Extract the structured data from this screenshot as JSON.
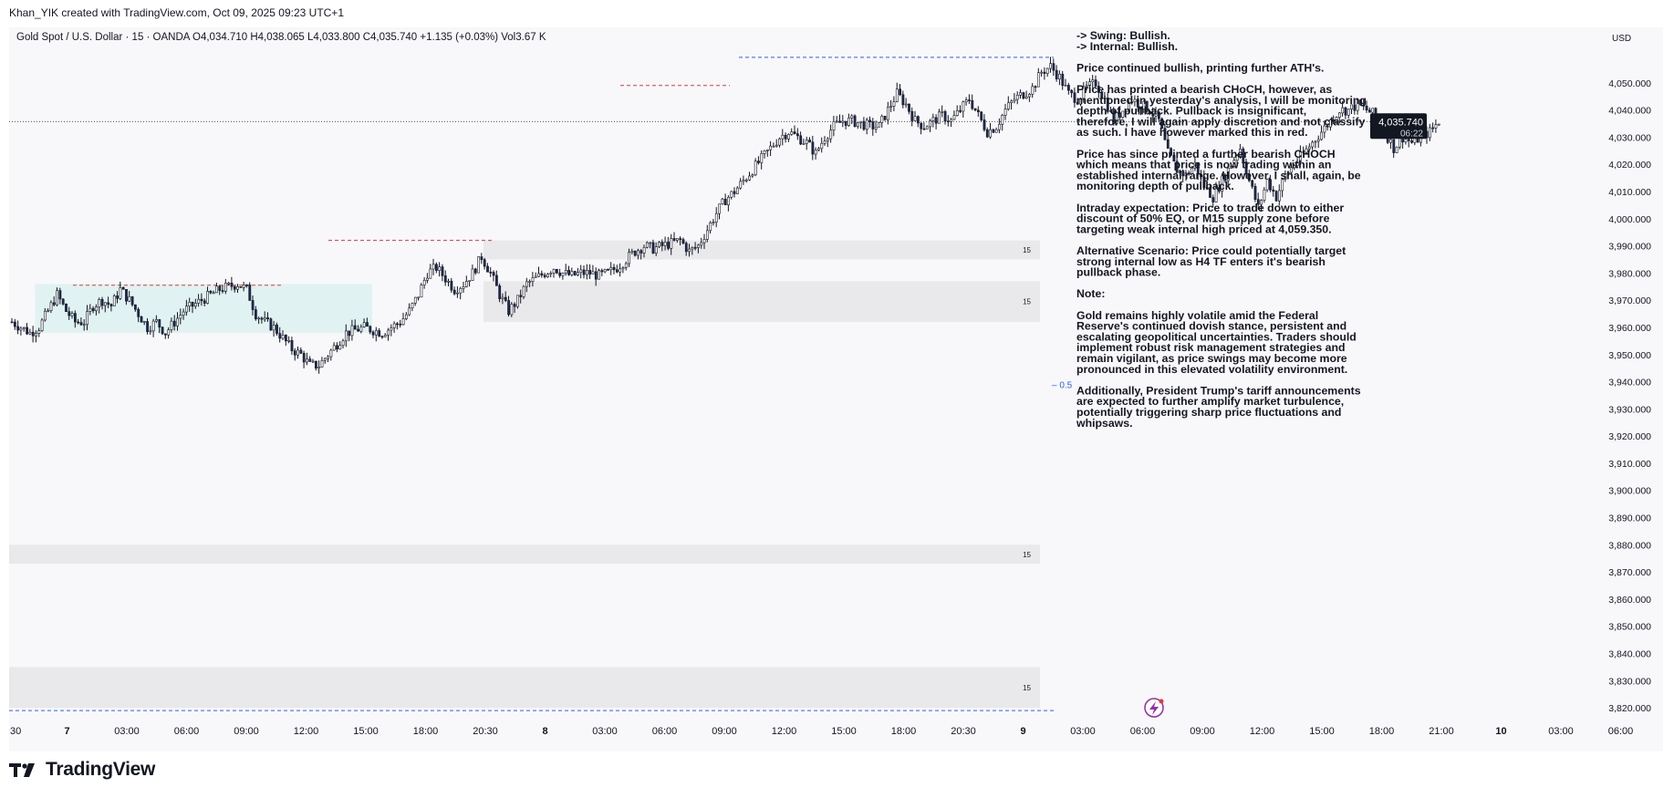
{
  "header": {
    "caption": "Khan_YIK created with TradingView.com, Oct 09, 2025 09:23 UTC+1"
  },
  "footer": {
    "brand": "TradingView"
  },
  "chart_data": {
    "type": "candlestick",
    "symbol_line": "Gold Spot / U.S. Dollar · 15 · OANDA  O4,034.710  H4,038.065  L4,033.800  C4,035.740  +1.135 (+0.03%)  Vol3.67 K",
    "currency": "USD",
    "ylim": [
      3815,
      4060
    ],
    "y_ticks": [
      4050,
      4040,
      4030,
      4020,
      4010,
      4000,
      3990,
      3980,
      3970,
      3960,
      3950,
      3940,
      3930,
      3920,
      3910,
      3900,
      3890,
      3880,
      3870,
      3860,
      3850,
      3840,
      3830,
      3820
    ],
    "y_tick_labels": [
      "4,050.000",
      "4,040.000",
      "4,030.000",
      "4,020.000",
      "4,010.000",
      "4,000.000",
      "3,990.000",
      "3,980.000",
      "3,970.000",
      "3,960.000",
      "3,950.000",
      "3,940.000",
      "3,930.000",
      "3,920.000",
      "3,910.000",
      "3,900.000",
      "3,890.000",
      "3,880.000",
      "3,870.000",
      "3,860.000",
      "3,850.000",
      "3,840.000",
      "3,830.000",
      "3,820.000"
    ],
    "x_tick_labels": [
      ":30",
      "7",
      "03:00",
      "06:00",
      "09:00",
      "12:00",
      "15:00",
      "18:00",
      "20:30",
      "8",
      "03:00",
      "06:00",
      "09:00",
      "12:00",
      "15:00",
      "18:00",
      "20:30",
      "9",
      "03:00",
      "06:00",
      "09:00",
      "12:00",
      "15:00",
      "18:00",
      "21:00",
      "10",
      "03:00",
      "06:00"
    ],
    "bold_ticks": [
      "7",
      "8",
      "9",
      "10"
    ],
    "last_price": 4035.74,
    "last_price_label": "4,035.740",
    "countdown": "06:22",
    "close_path": [
      [
        0,
        3962
      ],
      [
        3,
        3960
      ],
      [
        6,
        3958
      ],
      [
        9,
        3960
      ],
      [
        12,
        3966
      ],
      [
        15,
        3972
      ],
      [
        18,
        3966
      ],
      [
        21,
        3962
      ],
      [
        24,
        3962
      ],
      [
        27,
        3968
      ],
      [
        30,
        3970
      ],
      [
        33,
        3968
      ],
      [
        36,
        3974
      ],
      [
        39,
        3970
      ],
      [
        42,
        3965
      ],
      [
        45,
        3960
      ],
      [
        48,
        3962
      ],
      [
        51,
        3958
      ],
      [
        54,
        3962
      ],
      [
        57,
        3966
      ],
      [
        60,
        3968
      ],
      [
        63,
        3970
      ],
      [
        66,
        3972
      ],
      [
        69,
        3974
      ],
      [
        72,
        3975
      ],
      [
        75,
        3976
      ],
      [
        78,
        3974
      ],
      [
        81,
        3965
      ],
      [
        84,
        3962
      ],
      [
        87,
        3960
      ],
      [
        90,
        3956
      ],
      [
        93,
        3952
      ],
      [
        96,
        3950
      ],
      [
        99,
        3946
      ],
      [
        102,
        3946
      ],
      [
        105,
        3950
      ],
      [
        108,
        3954
      ],
      [
        111,
        3958
      ],
      [
        114,
        3959
      ],
      [
        117,
        3960
      ],
      [
        120,
        3959
      ],
      [
        123,
        3958
      ],
      [
        126,
        3960
      ],
      [
        129,
        3962
      ],
      [
        132,
        3966
      ],
      [
        135,
        3972
      ],
      [
        138,
        3980
      ],
      [
        141,
        3982
      ],
      [
        144,
        3978
      ],
      [
        147,
        3974
      ],
      [
        150,
        3976
      ],
      [
        153,
        3980
      ],
      [
        156,
        3986
      ],
      [
        159,
        3980
      ],
      [
        162,
        3972
      ],
      [
        165,
        3966
      ],
      [
        168,
        3970
      ],
      [
        171,
        3976
      ],
      [
        174,
        3978
      ],
      [
        177,
        3980
      ],
      [
        180,
        3982
      ],
      [
        183,
        3980
      ],
      [
        186,
        3979
      ],
      [
        189,
        3980
      ],
      [
        192,
        3980
      ],
      [
        195,
        3979
      ],
      [
        198,
        3980
      ],
      [
        201,
        3982
      ],
      [
        204,
        3985
      ],
      [
        207,
        3988
      ],
      [
        210,
        3990
      ],
      [
        213,
        3989
      ],
      [
        216,
        3990
      ],
      [
        219,
        3991
      ],
      [
        222,
        3992
      ],
      [
        225,
        3988
      ],
      [
        228,
        3990
      ],
      [
        231,
        3996
      ],
      [
        234,
        4002
      ],
      [
        237,
        4007
      ],
      [
        240,
        4010
      ],
      [
        243,
        4014
      ],
      [
        246,
        4018
      ],
      [
        249,
        4022
      ],
      [
        252,
        4026
      ],
      [
        255,
        4030
      ],
      [
        258,
        4032
      ],
      [
        261,
        4030
      ],
      [
        264,
        4028
      ],
      [
        267,
        4024
      ],
      [
        270,
        4030
      ],
      [
        273,
        4034
      ],
      [
        276,
        4036
      ],
      [
        279,
        4036
      ],
      [
        282,
        4035
      ],
      [
        285,
        4034
      ],
      [
        288,
        4034
      ],
      [
        291,
        4040
      ],
      [
        294,
        4046
      ],
      [
        297,
        4042
      ],
      [
        300,
        4036
      ],
      [
        303,
        4034
      ],
      [
        306,
        4036
      ],
      [
        309,
        4038
      ],
      [
        312,
        4036
      ],
      [
        315,
        4040
      ],
      [
        318,
        4044
      ],
      [
        321,
        4038
      ],
      [
        324,
        4032
      ],
      [
        327,
        4034
      ],
      [
        330,
        4040
      ],
      [
        333,
        4044
      ],
      [
        336,
        4046
      ],
      [
        339,
        4048
      ],
      [
        342,
        4054
      ],
      [
        345,
        4056
      ],
      [
        348,
        4052
      ],
      [
        351,
        4046
      ],
      [
        354,
        4044
      ],
      [
        357,
        4048
      ],
      [
        360,
        4050
      ],
      [
        363,
        4044
      ],
      [
        366,
        4036
      ],
      [
        369,
        4040
      ],
      [
        372,
        4044
      ],
      [
        375,
        4042
      ],
      [
        378,
        4040
      ],
      [
        381,
        4036
      ],
      [
        384,
        4024
      ],
      [
        387,
        4018
      ],
      [
        390,
        4016
      ],
      [
        393,
        4020
      ],
      [
        396,
        4012
      ],
      [
        399,
        4008
      ],
      [
        402,
        4014
      ],
      [
        405,
        4020
      ],
      [
        408,
        4026
      ],
      [
        411,
        4014
      ],
      [
        414,
        4004
      ],
      [
        417,
        4014
      ],
      [
        420,
        4008
      ],
      [
        423,
        4016
      ],
      [
        426,
        4020
      ],
      [
        429,
        4024
      ],
      [
        432,
        4028
      ],
      [
        435,
        4032
      ],
      [
        438,
        4036
      ],
      [
        441,
        4040
      ],
      [
        444,
        4040
      ],
      [
        447,
        4042
      ],
      [
        450,
        4040
      ],
      [
        453,
        4038
      ],
      [
        456,
        4032
      ],
      [
        459,
        4026
      ],
      [
        462,
        4030
      ],
      [
        465,
        4028
      ],
      [
        468,
        4030
      ],
      [
        471,
        4032
      ],
      [
        474,
        4035.74
      ]
    ],
    "levels": [
      {
        "price": 3975.5,
        "color": "#e53935"
      },
      {
        "price": 3992,
        "color": "#e53935"
      },
      {
        "price": 4049,
        "color": "#e53935"
      },
      {
        "price": 4059.35,
        "color": "#2962ff"
      },
      {
        "price": 3819,
        "color": "#2962ff"
      }
    ],
    "zones": [
      {
        "top": 3992,
        "bottom": 3985,
        "label": "15"
      },
      {
        "top": 3977,
        "bottom": 3962,
        "label": "15"
      },
      {
        "top": 3880,
        "bottom": 3873,
        "label": "15"
      },
      {
        "top": 3835,
        "bottom": 3820,
        "label": "15"
      }
    ],
    "range_box": {
      "x_from": 8,
      "x_to": 120,
      "top": 3976,
      "bottom": 3958
    },
    "eq_label": "0.5",
    "eq_price": 3939,
    "annotations": [
      "-> Swing: Bullish.",
      "-> Internal: Bullish.",
      "",
      "Price continued bullish, printing further ATH's.",
      "",
      "Price has printed a bearish CHoCH, however, as",
      "mentioned in yesterday's analysis, I will be monitoring",
      "depth of pullback.  Pullback is insignificant,",
      "therefore, I will again apply discretion and not classify",
      "as such.  I have however marked this in red.",
      "",
      "Price has since printed a further bearish CHOCH",
      "which means that price is now trading within an",
      "established internal range.  However, I shall, again, be",
      "monitoring depth of pullback.",
      "",
      "Intraday expectation:  Price to trade down to either",
      "discount of 50% EQ, or M15 supply zone before",
      "targeting weak internal high priced at 4,059.350.",
      "",
      "Alternative Scenario: Price could potentially target",
      "strong internal low as H4 TF enters it's bearish",
      "pullback phase.",
      "",
      "Note:",
      "",
      "Gold remains highly volatile amid the Federal",
      "Reserve's continued dovish stance, persistent and",
      "escalating geopolitical uncertainties. Traders should",
      "implement robust risk management strategies and",
      "remain vigilant, as price swings may become more",
      "pronounced in this elevated volatility environment.",
      "",
      "Additionally, President Trump's tariff announcements",
      "are expected to further amplify market turbulence,",
      "potentially triggering sharp price fluctuations and",
      "whipsaws."
    ],
    "colors": {
      "bull": "#131722",
      "bear": "#131722",
      "hollow": "#ffffff",
      "bear_fill": "#1e2b55",
      "range_fill": "#e0f2f1",
      "zone_fill": "#e9e9eb",
      "price_label_bg": "#131722"
    }
  }
}
